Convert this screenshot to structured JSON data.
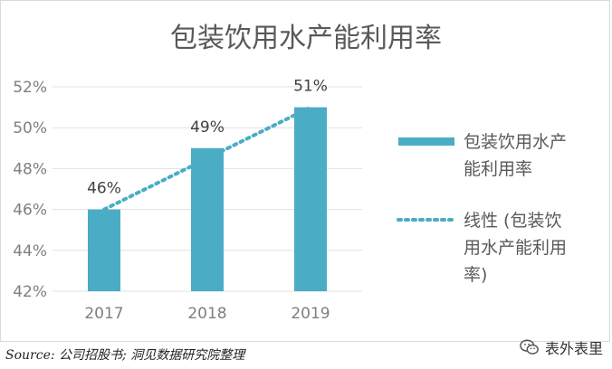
{
  "chart_data": {
    "type": "bar",
    "title": "包装饮用水产能利用率",
    "categories": [
      "2017",
      "2018",
      "2019"
    ],
    "series": [
      {
        "name": "包装饮用水产能利用率",
        "type": "bar",
        "values": [
          46,
          49,
          51
        ]
      },
      {
        "name": "线性 (包装饮用水产能利用率)",
        "type": "trendline",
        "values": [
          46,
          48.5,
          51
        ]
      }
    ],
    "data_labels": [
      "46%",
      "49%",
      "51%"
    ],
    "y_ticks": [
      "42%",
      "44%",
      "46%",
      "48%",
      "50%",
      "52%"
    ],
    "ylim": [
      42,
      52
    ],
    "y_unit": "%",
    "grid": true,
    "legend_position": "right",
    "colors": {
      "bar": "#4bacc6",
      "trendline": "#4bacc6"
    }
  },
  "legend": {
    "bar_label_lines": [
      "包装饮用水产",
      "能利用率"
    ],
    "trend_label_lines": [
      "线性 (包装饮",
      "用水产能利用",
      "率)"
    ]
  },
  "footer": {
    "source": "Source: 公司招股书; 洞见数据研究院整理",
    "brand": "表外表里",
    "brand_icon": "wechat-icon"
  }
}
